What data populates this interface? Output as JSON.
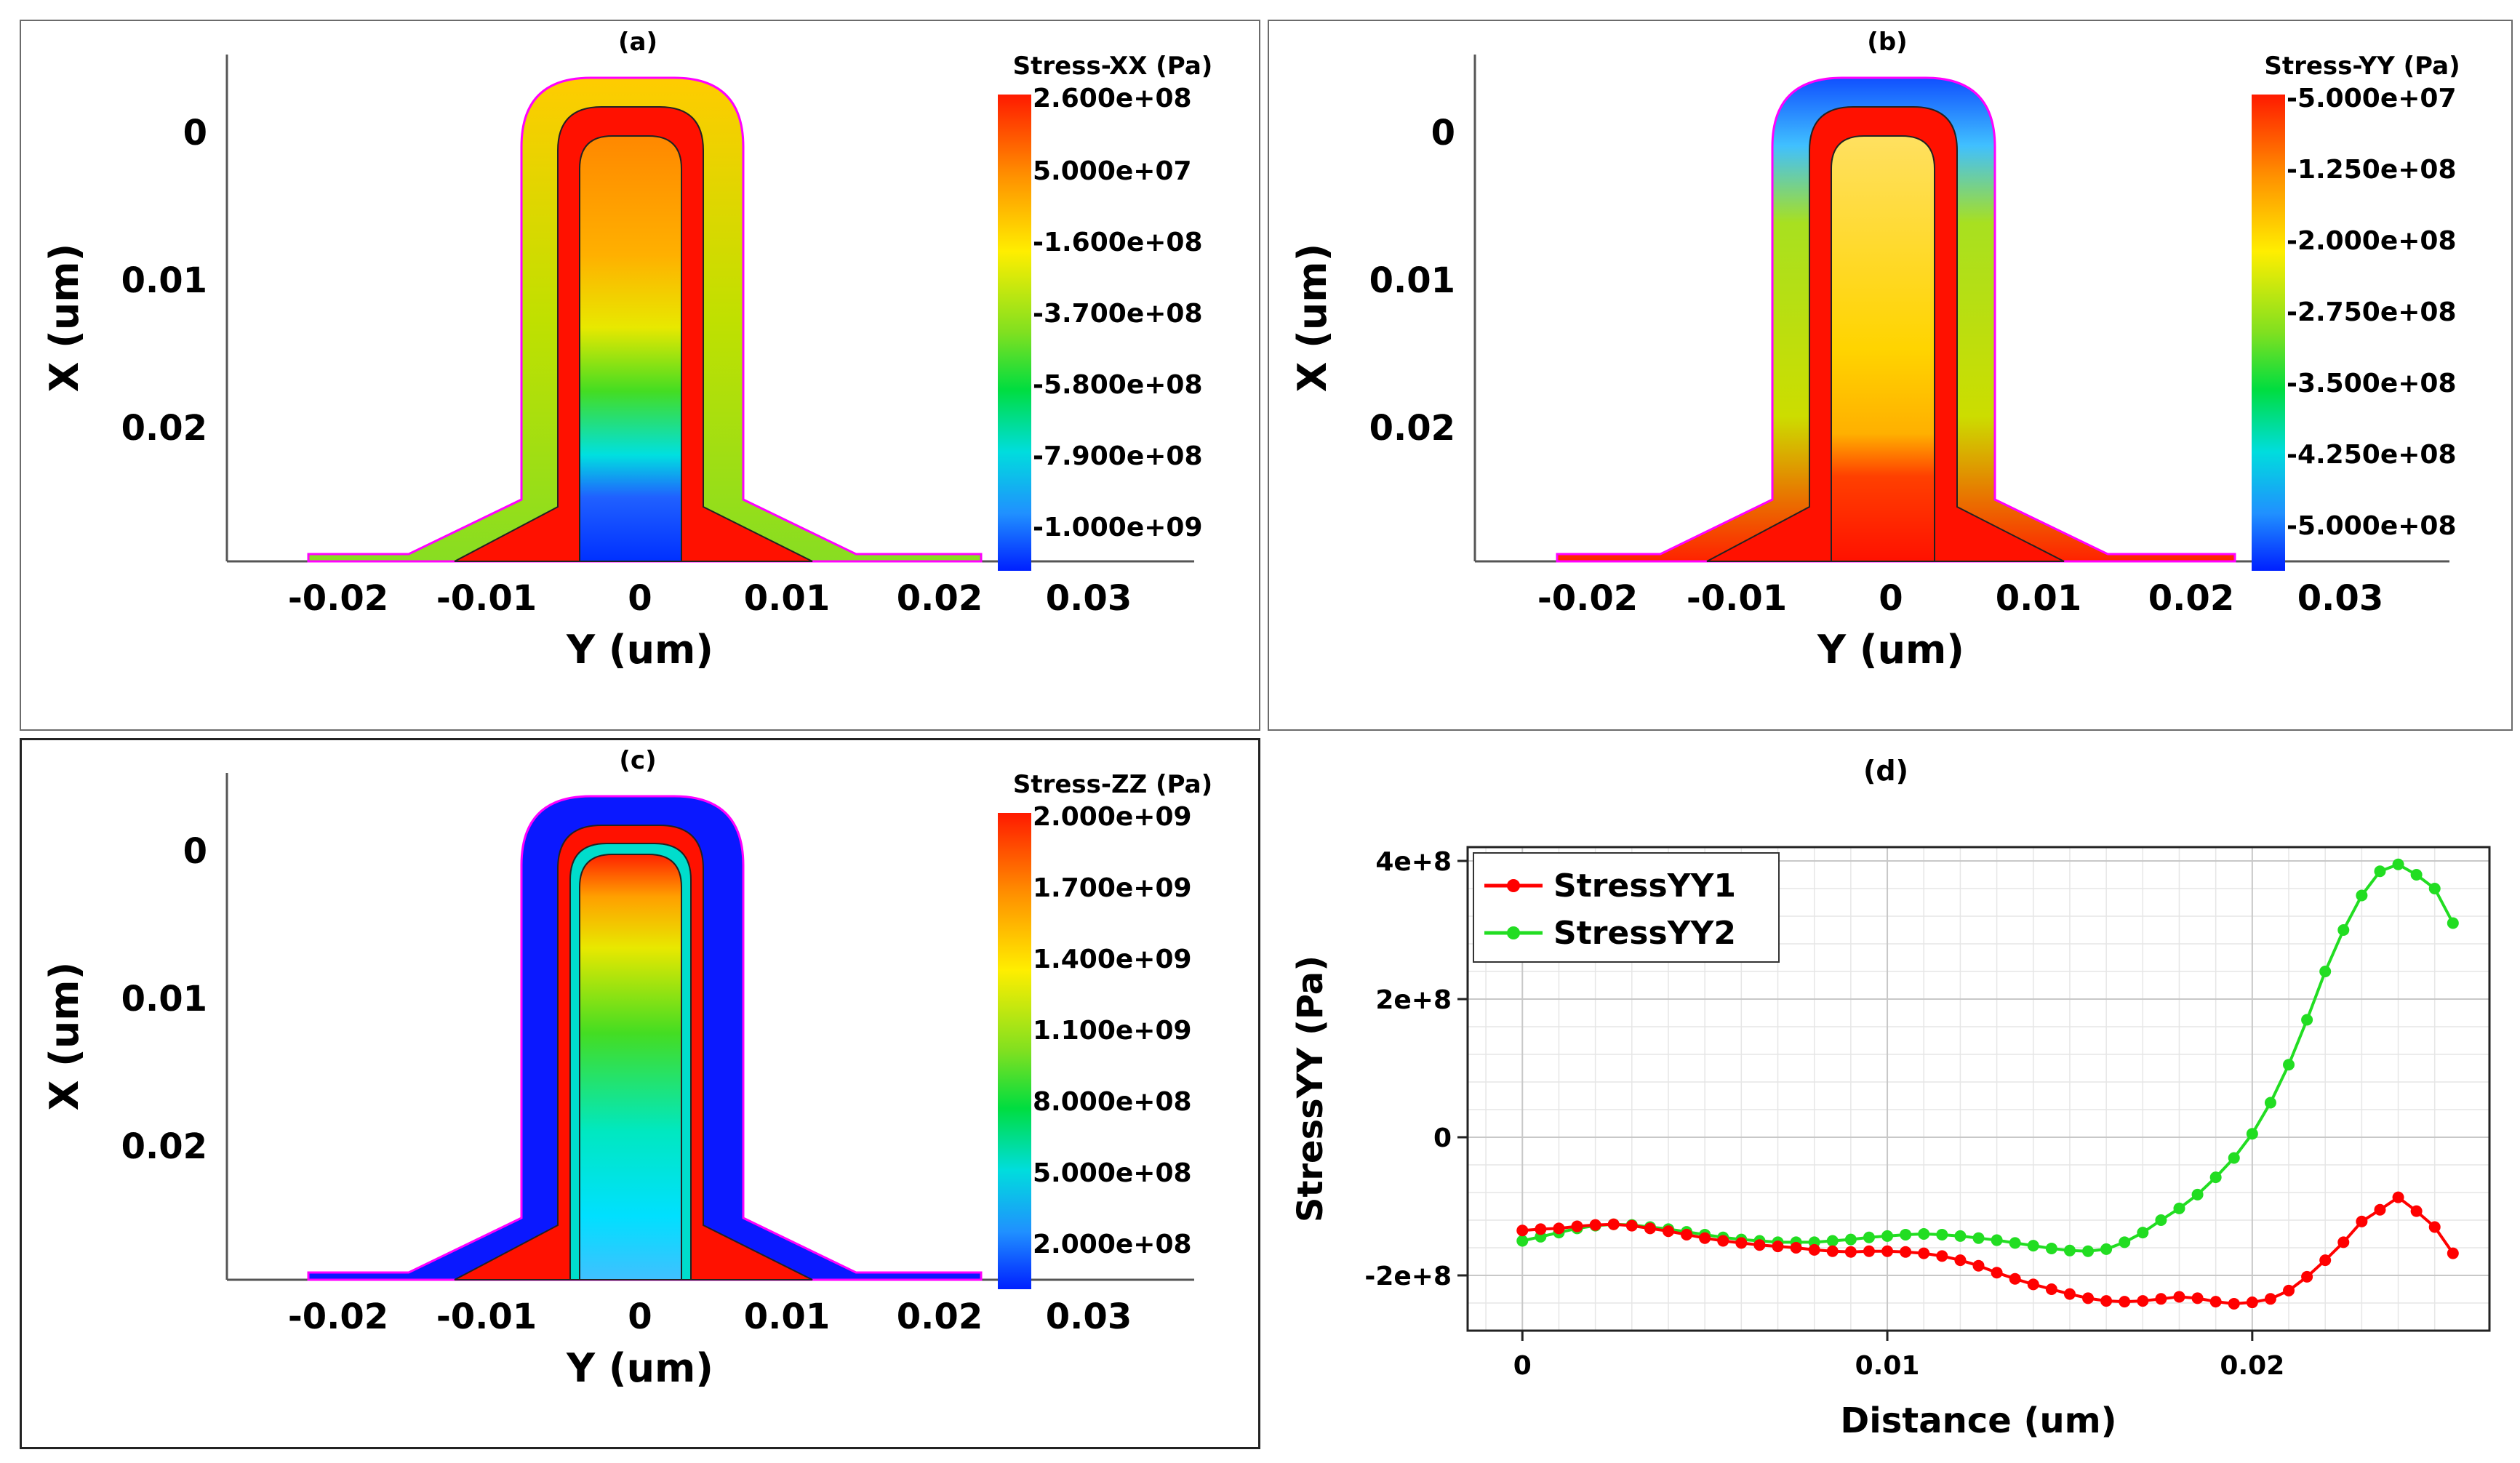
{
  "panels": {
    "a": {
      "tag": "(a)",
      "legend_title": "Stress-XX (Pa)",
      "legend_labels": [
        "2.600e+08",
        "5.000e+07",
        "-1.600e+08",
        "-3.700e+08",
        "-5.800e+08",
        "-7.900e+08",
        "-1.000e+09"
      ],
      "xaxis_label": "Y (um)",
      "yaxis_label": "X (um)",
      "x_ticks": [
        "-0.02",
        "-0.01",
        "0",
        "0.01",
        "0.02",
        "0.03"
      ],
      "y_ticks": [
        "0",
        "0.01",
        "0.02"
      ]
    },
    "b": {
      "tag": "(b)",
      "legend_title": "Stress-YY (Pa)",
      "legend_labels": [
        "-5.000e+07",
        "-1.250e+08",
        "-2.000e+08",
        "-2.750e+08",
        "-3.500e+08",
        "-4.250e+08",
        "-5.000e+08"
      ],
      "xaxis_label": "Y (um)",
      "yaxis_label": "X (um)",
      "x_ticks": [
        "-0.02",
        "-0.01",
        "0",
        "0.01",
        "0.02",
        "0.03"
      ],
      "y_ticks": [
        "0",
        "0.01",
        "0.02"
      ]
    },
    "c": {
      "tag": "(c)",
      "legend_title": "Stress-ZZ (Pa)",
      "legend_labels": [
        "2.000e+09",
        "1.700e+09",
        "1.400e+09",
        "1.100e+09",
        "8.000e+08",
        "5.000e+08",
        "2.000e+08"
      ],
      "xaxis_label": "Y (um)",
      "yaxis_label": "X (um)",
      "x_ticks": [
        "-0.02",
        "-0.01",
        "0",
        "0.01",
        "0.02",
        "0.03"
      ],
      "y_ticks": [
        "0",
        "0.01",
        "0.02"
      ]
    },
    "d": {
      "tag": "(d)"
    }
  },
  "colors": {
    "line1": "#ff0000",
    "line2": "#22dd22"
  },
  "chart_data": [
    {
      "type": "heatmap",
      "title": "(a)",
      "quantity": "Stress-XX (Pa)",
      "xlabel": "Y (um)",
      "ylabel": "X (um)",
      "xlim": [
        -0.028,
        0.038
      ],
      "ylim": [
        0.029,
        -0.005
      ],
      "colorbar_range": [
        -1000000000.0,
        260000000.0
      ]
    },
    {
      "type": "heatmap",
      "title": "(b)",
      "quantity": "Stress-YY (Pa)",
      "xlabel": "Y (um)",
      "ylabel": "X (um)",
      "xlim": [
        -0.028,
        0.038
      ],
      "ylim": [
        0.029,
        -0.005
      ],
      "colorbar_range": [
        -500000000.0,
        -50000000.0
      ]
    },
    {
      "type": "heatmap",
      "title": "(c)",
      "quantity": "Stress-ZZ (Pa)",
      "xlabel": "Y (um)",
      "ylabel": "X (um)",
      "xlim": [
        -0.028,
        0.038
      ],
      "ylim": [
        0.029,
        -0.005
      ],
      "colorbar_range": [
        200000000.0,
        2000000000.0
      ]
    },
    {
      "type": "line",
      "title": "(d)",
      "xlabel": "Distance (um)",
      "ylabel": "StressYY (Pa)",
      "xlim": [
        -0.0015,
        0.0265
      ],
      "ylim": [
        -280000000.0,
        420000000.0
      ],
      "x_ticks": [
        0,
        0.01,
        0.02
      ],
      "x_tick_labels": [
        "0",
        "0.01",
        "0.02"
      ],
      "y_ticks": [
        -200000000.0,
        0,
        200000000.0,
        400000000.0
      ],
      "y_tick_labels": [
        "-2e+8",
        "0",
        "2e+8",
        "4e+8"
      ],
      "legend": "top-left",
      "series": [
        {
          "name": "StressYY1",
          "x": [
            0,
            0.0005,
            0.001,
            0.0015,
            0.002,
            0.0025,
            0.003,
            0.0035,
            0.004,
            0.0045,
            0.005,
            0.0055,
            0.006,
            0.0065,
            0.007,
            0.0075,
            0.008,
            0.0085,
            0.009,
            0.0095,
            0.01,
            0.0105,
            0.011,
            0.0115,
            0.012,
            0.0125,
            0.013,
            0.0135,
            0.014,
            0.0145,
            0.015,
            0.0155,
            0.016,
            0.0165,
            0.017,
            0.0175,
            0.018,
            0.0185,
            0.019,
            0.0195,
            0.02,
            0.0205,
            0.021,
            0.0215,
            0.022,
            0.0225,
            0.023,
            0.0235,
            0.024,
            0.0245,
            0.025,
            0.0255
          ],
          "y": [
            -135000000.0,
            -133000000.0,
            -132000000.0,
            -129000000.0,
            -127000000.0,
            -126000000.0,
            -128000000.0,
            -132000000.0,
            -136000000.0,
            -141000000.0,
            -146000000.0,
            -150000000.0,
            -153000000.0,
            -156000000.0,
            -158000000.0,
            -160000000.0,
            -163000000.0,
            -165000000.0,
            -166000000.0,
            -165000000.0,
            -165000000.0,
            -166000000.0,
            -168000000.0,
            -172000000.0,
            -178000000.0,
            -186000000.0,
            -196000000.0,
            -205000000.0,
            -213000000.0,
            -220000000.0,
            -227000000.0,
            -233000000.0,
            -237000000.0,
            -238000000.0,
            -237000000.0,
            -234000000.0,
            -231000000.0,
            -233000000.0,
            -238000000.0,
            -241000000.0,
            -239000000.0,
            -234000000.0,
            -222000000.0,
            -202000000.0,
            -178000000.0,
            -152000000.0,
            -122000000.0,
            -105000000.0,
            -87000000.0,
            -107000000.0,
            -130000000.0,
            -168000000.0
          ]
        },
        {
          "name": "StressYY2",
          "x": [
            0,
            0.0005,
            0.001,
            0.0015,
            0.002,
            0.0025,
            0.003,
            0.0035,
            0.004,
            0.0045,
            0.005,
            0.0055,
            0.006,
            0.0065,
            0.007,
            0.0075,
            0.008,
            0.0085,
            0.009,
            0.0095,
            0.01,
            0.0105,
            0.011,
            0.0115,
            0.012,
            0.0125,
            0.013,
            0.0135,
            0.014,
            0.0145,
            0.015,
            0.0155,
            0.016,
            0.0165,
            0.017,
            0.0175,
            0.018,
            0.0185,
            0.019,
            0.0195,
            0.02,
            0.0205,
            0.021,
            0.0215,
            0.022,
            0.0225,
            0.023,
            0.0235,
            0.024,
            0.0245,
            0.025,
            0.0255
          ],
          "y": [
            -150000000.0,
            -144000000.0,
            -138000000.0,
            -132000000.0,
            -128000000.0,
            -126000000.0,
            -127000000.0,
            -130000000.0,
            -133000000.0,
            -137000000.0,
            -141000000.0,
            -145000000.0,
            -148000000.0,
            -150000000.0,
            -152000000.0,
            -152000000.0,
            -152000000.0,
            -150000000.0,
            -148000000.0,
            -145000000.0,
            -143000000.0,
            -141000000.0,
            -140000000.0,
            -141000000.0,
            -143000000.0,
            -146000000.0,
            -149000000.0,
            -153000000.0,
            -157000000.0,
            -161000000.0,
            -164000000.0,
            -165000000.0,
            -162000000.0,
            -152000000.0,
            -138000000.0,
            -120000000.0,
            -103000000.0,
            -83000000.0,
            -58000000.0,
            -30000000.0,
            5000000.0,
            50000000.0,
            105000000.0,
            170000000.0,
            240000000.0,
            300000000.0,
            350000000.0,
            385000000.0,
            395000000.0,
            380000000.0,
            360000000.0,
            310000000.0
          ]
        }
      ]
    }
  ]
}
